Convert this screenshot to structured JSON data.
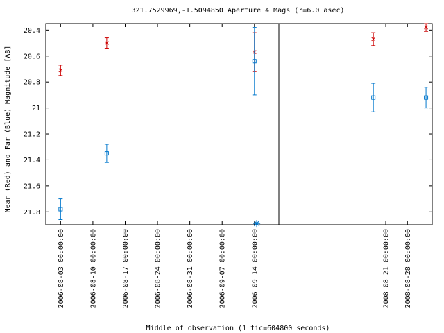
{
  "chart_data": {
    "type": "scatter",
    "title": "321.7529969,-1.5094850   Aperture 4 Mags (r=6.0 asec)",
    "xlabel": "Middle of observation (1 tic=604800 seconds)",
    "ylabel": "Near (Red) and Far (Blue) Magnitude [AB]",
    "y_inverted": true,
    "ylim": [
      21.9,
      20.35
    ],
    "yticks": [
      20.4,
      20.6,
      20.8,
      21,
      21.2,
      21.4,
      21.6,
      21.8
    ],
    "ytick_labels": [
      "20.4",
      "20.6",
      "20.8",
      "21",
      "21.2",
      "21.4",
      "21.6",
      "21.8"
    ],
    "panels": [
      {
        "xlim": [
          "2006-07-30 19:00:00",
          "2006-09-19 07:00:00"
        ],
        "xticks": [
          "2006-08-03 00:00:00",
          "2006-08-10 00:00:00",
          "2006-08-17 00:00:00",
          "2006-08-24 00:00:00",
          "2006-08-31 00:00:00",
          "2006-09-07 00:00:00",
          "2006-09-14 00:00:00"
        ]
      },
      {
        "xlim": [
          "2008-07-17 12:00:00",
          "2008-09-05 00:00:00"
        ],
        "xticks": [
          "2008-08-21 00:00:00",
          "2008-08-28 00:00:00"
        ]
      }
    ],
    "series": [
      {
        "name": "Near (Red)",
        "color": "#cc0000",
        "marker": "x",
        "points": [
          {
            "x": "2006-08-03 00:00:00",
            "y": 20.71,
            "err": 0.04
          },
          {
            "x": "2006-08-13 00:00:00",
            "y": 20.5,
            "err": 0.04
          },
          {
            "x": "2006-09-14 00:00:00",
            "y": 20.57,
            "err": 0.15
          },
          {
            "x": "2008-08-17 00:00:00",
            "y": 20.47,
            "err": 0.05
          },
          {
            "x": "2008-09-03 00:00:00",
            "y": 20.38,
            "err": 0.03
          }
        ]
      },
      {
        "name": "Far (Blue)",
        "color": "#0077cc",
        "marker": "square",
        "points": [
          {
            "x": "2006-08-03 00:00:00",
            "y": 21.78,
            "err": 0.08
          },
          {
            "x": "2006-08-13 00:00:00",
            "y": 21.35,
            "err": 0.07
          },
          {
            "x": "2006-09-14 00:00:00",
            "y": 20.64,
            "err": 0.26
          },
          {
            "x": "2008-08-17 00:00:00",
            "y": 20.92,
            "err": 0.11
          },
          {
            "x": "2008-09-03 00:00:00",
            "y": 20.92,
            "err": 0.08
          }
        ]
      }
    ],
    "limit_markers": [
      {
        "x": "2006-09-14 12:00:00",
        "y": 21.89,
        "color": "#0077cc",
        "marker": "asterisk"
      }
    ]
  }
}
